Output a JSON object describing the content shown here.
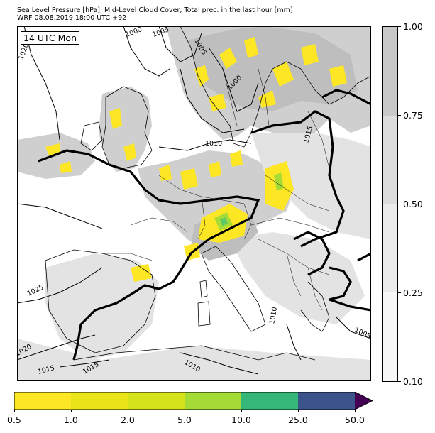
{
  "header": {
    "line1": "Sea Level Pressure [hPa], Mid-Level Cloud Cover, Total prec. in the last hour [mm]",
    "line2": "WRF 08.08.2019 18:00 UTC +92"
  },
  "map": {
    "time_label": "14 UTC Mon",
    "isobar_labels": [
      "1020",
      "1000",
      "1005",
      "1005",
      "1000",
      "1010",
      "1015",
      "1025",
      "1020",
      "1015",
      "1015",
      "1010",
      "1010",
      "1005"
    ],
    "colors": {
      "sea": "#ffffff",
      "cloud_light": "#e3e3e3",
      "cloud_mid": "#cfcfcf",
      "cloud_dense": "#bebebe",
      "precip": "#fde725",
      "precip_2": "#a8db34",
      "precip_3": "#5ec962",
      "coast": "#000000"
    }
  },
  "cloud_colorbar": {
    "ticks": [
      "1.00",
      "0.75",
      "0.50",
      "0.25",
      "0.10"
    ],
    "colors": [
      "#f7f7f7",
      "#e3e3e3",
      "#cfcfcf",
      "#bdbdbd"
    ]
  },
  "precip_colorbar": {
    "ticks": [
      "0.5",
      "1.0",
      "2.0",
      "5.0",
      "10.0",
      "25.0",
      "50.0"
    ],
    "colors": [
      "#fde725",
      "#e8e419",
      "#d2e21b",
      "#a0da39",
      "#4ac16d",
      "#2ab07f",
      "#3b528b"
    ],
    "extend_color": "#440154"
  }
}
